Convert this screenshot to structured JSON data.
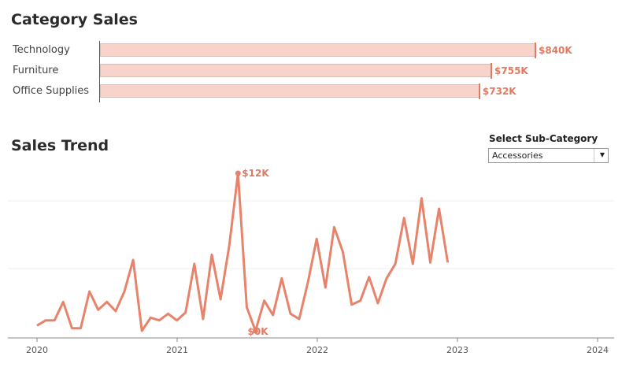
{
  "category_sales": {
    "title": "Category Sales",
    "chart_data": {
      "type": "bar",
      "orientation": "horizontal",
      "categories": [
        "Technology",
        "Furniture",
        "Office Supplies"
      ],
      "values": [
        840,
        755,
        732
      ],
      "value_labels": [
        "$840K",
        "$755K",
        "$732K"
      ],
      "unit": "$K",
      "xlim": [
        0,
        900
      ]
    }
  },
  "sales_trend": {
    "title": "Sales Trend",
    "selector": {
      "label": "Select Sub-Category",
      "selected": "Accessories"
    },
    "chart_data": {
      "type": "line",
      "x_start": "2020-01",
      "x": [
        "2020-01",
        "2020-02",
        "2020-03",
        "2020-04",
        "2020-05",
        "2020-06",
        "2020-07",
        "2020-08",
        "2020-09",
        "2020-10",
        "2020-11",
        "2020-12",
        "2021-01",
        "2021-02",
        "2021-03",
        "2021-04",
        "2021-05",
        "2021-06",
        "2021-07",
        "2021-08",
        "2021-09",
        "2021-10",
        "2021-11",
        "2021-12",
        "2022-01",
        "2022-02",
        "2022-03",
        "2022-04",
        "2022-05",
        "2022-06",
        "2022-07",
        "2022-08",
        "2022-09",
        "2022-10",
        "2022-11",
        "2022-12",
        "2023-01",
        "2023-02",
        "2023-03",
        "2023-04",
        "2023-05",
        "2023-06",
        "2023-07",
        "2023-08",
        "2023-09",
        "2023-10",
        "2023-11",
        "2023-12"
      ],
      "y": [
        0.4,
        0.8,
        0.8,
        2.2,
        0.2,
        0.2,
        3.0,
        1.6,
        2.2,
        1.5,
        3.0,
        5.4,
        0.0,
        1.0,
        0.8,
        1.3,
        0.8,
        1.4,
        5.1,
        0.9,
        5.8,
        2.4,
        6.5,
        12.0,
        1.8,
        0.0,
        2.3,
        1.2,
        4.0,
        1.3,
        0.9,
        3.7,
        7.0,
        3.3,
        7.9,
        6.0,
        2.0,
        2.3,
        4.1,
        2.1,
        4.0,
        5.1,
        8.6,
        5.1,
        10.1,
        5.2,
        9.3,
        5.2
      ],
      "ylim": [
        0,
        12.5
      ],
      "x_ticks": [
        "2020",
        "2021",
        "2022",
        "2023",
        "2024"
      ],
      "annotations": {
        "max_label": "$12K",
        "min_label": "$0K"
      },
      "gridlines": true,
      "color": "#e8836b"
    }
  },
  "colors": {
    "accent": "#e07a62",
    "bar_fill": "#f8d3cc",
    "line": "#e8836b"
  }
}
